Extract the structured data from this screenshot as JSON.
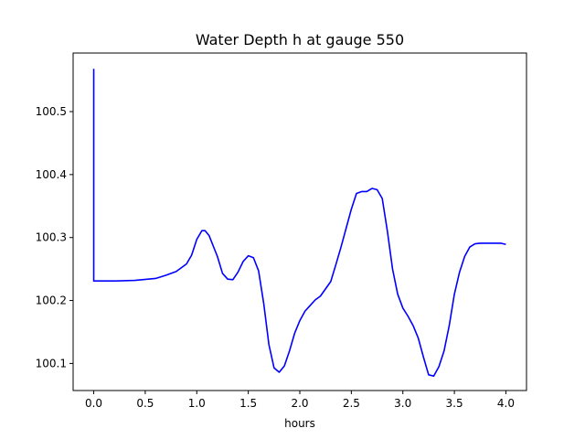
{
  "chart_data": {
    "type": "line",
    "title": "Water Depth h at gauge 550",
    "xlabel": "hours",
    "ylabel": "",
    "xlim": [
      -0.2,
      4.2
    ],
    "ylim": [
      100.057,
      100.593
    ],
    "xticks": [
      {
        "value": 0.0,
        "label": "0.0"
      },
      {
        "value": 0.5,
        "label": "0.5"
      },
      {
        "value": 1.0,
        "label": "1.0"
      },
      {
        "value": 1.5,
        "label": "1.5"
      },
      {
        "value": 2.0,
        "label": "2.0"
      },
      {
        "value": 2.5,
        "label": "2.5"
      },
      {
        "value": 3.0,
        "label": "3.0"
      },
      {
        "value": 3.5,
        "label": "3.5"
      },
      {
        "value": 4.0,
        "label": "4.0"
      }
    ],
    "yticks": [
      {
        "value": 100.1,
        "label": "100.1"
      },
      {
        "value": 100.2,
        "label": "100.2"
      },
      {
        "value": 100.3,
        "label": "100.3"
      },
      {
        "value": 100.4,
        "label": "100.4"
      },
      {
        "value": 100.5,
        "label": "100.5"
      }
    ],
    "grid": false,
    "series": [
      {
        "color": "#0000ff",
        "x": [
          0.0,
          0.0,
          0.0,
          0.2,
          0.4,
          0.6,
          0.7,
          0.8,
          0.9,
          0.95,
          1.0,
          1.05,
          1.08,
          1.12,
          1.2,
          1.25,
          1.3,
          1.35,
          1.4,
          1.45,
          1.5,
          1.55,
          1.6,
          1.65,
          1.7,
          1.75,
          1.8,
          1.85,
          1.9,
          1.95,
          2.0,
          2.05,
          2.1,
          2.15,
          2.2,
          2.3,
          2.35,
          2.4,
          2.45,
          2.5,
          2.55,
          2.6,
          2.65,
          2.7,
          2.75,
          2.8,
          2.85,
          2.9,
          2.95,
          3.0,
          3.05,
          3.1,
          3.15,
          3.2,
          3.25,
          3.3,
          3.35,
          3.4,
          3.45,
          3.5,
          3.55,
          3.6,
          3.65,
          3.7,
          3.75,
          3.8,
          3.85,
          3.9,
          3.95,
          4.0
        ],
        "y": [
          100.568,
          100.232,
          100.231,
          100.231,
          100.232,
          100.235,
          100.24,
          100.246,
          100.258,
          100.272,
          100.297,
          100.311,
          100.311,
          100.303,
          100.27,
          100.243,
          100.234,
          100.233,
          100.245,
          100.262,
          100.271,
          100.268,
          100.247,
          100.195,
          100.13,
          100.093,
          100.086,
          100.096,
          100.12,
          100.148,
          100.168,
          100.183,
          100.192,
          100.201,
          100.207,
          100.23,
          100.257,
          100.285,
          100.315,
          100.345,
          100.37,
          100.373,
          100.373,
          100.378,
          100.376,
          100.362,
          100.31,
          100.25,
          100.21,
          100.188,
          100.175,
          100.16,
          100.14,
          100.11,
          100.082,
          100.08,
          100.095,
          100.12,
          100.16,
          100.21,
          100.245,
          100.27,
          100.285,
          100.29,
          100.291,
          100.291,
          100.291,
          100.291,
          100.291,
          100.289
        ]
      }
    ]
  }
}
